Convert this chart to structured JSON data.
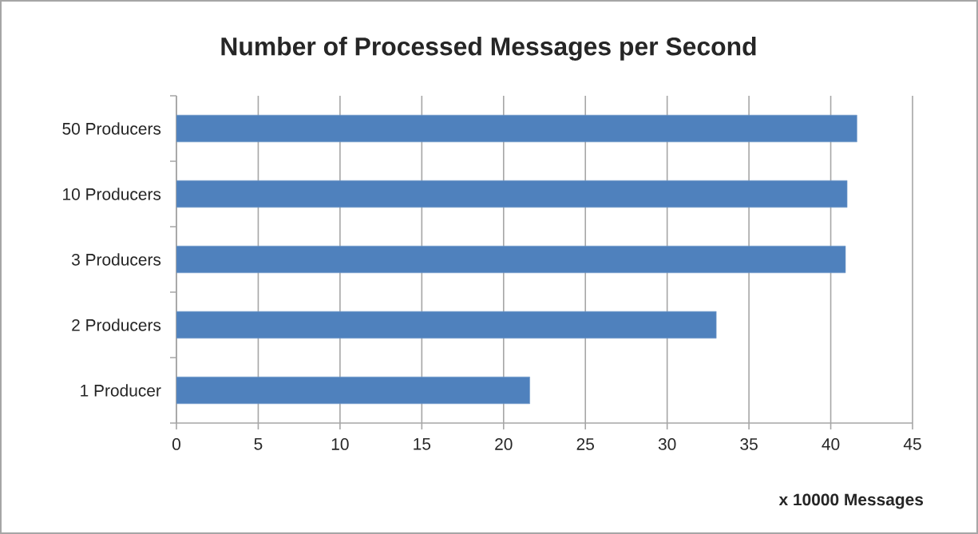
{
  "chart_data": {
    "type": "bar",
    "orientation": "horizontal",
    "title": "Number of Processed Messages per Second",
    "xlabel": "x 10000 Messages",
    "categories": [
      "50 Producers",
      "10 Producers",
      "3 Producers",
      "2 Producers",
      "1 Producer"
    ],
    "values": [
      41.6,
      41.0,
      40.9,
      33.0,
      21.6
    ],
    "color": "#4f81bd",
    "xlim": [
      0,
      45
    ],
    "xticks": [
      0,
      5,
      10,
      15,
      20,
      25,
      30,
      35,
      40,
      45
    ],
    "grid": "x"
  }
}
